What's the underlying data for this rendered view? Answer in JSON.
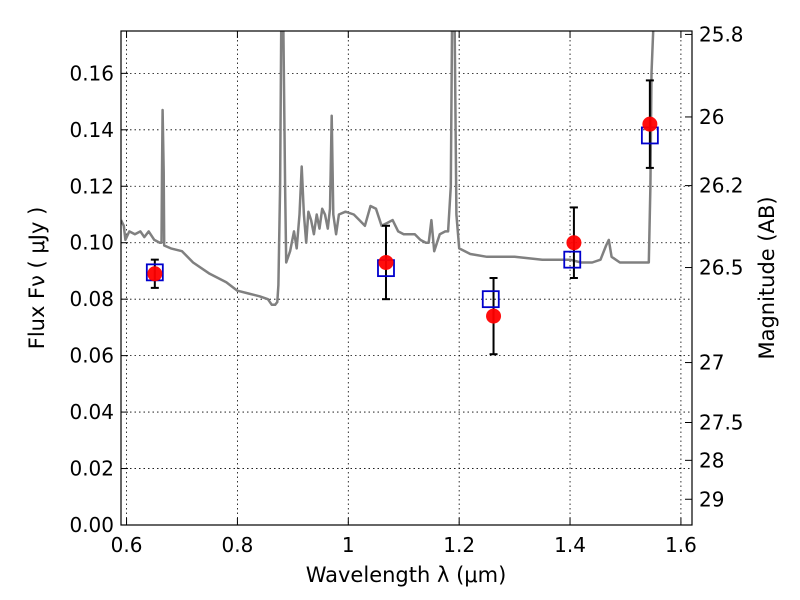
{
  "chart_data": {
    "type": "scatter",
    "xlabel": "Wavelength  λ (μm)",
    "ylabel": "Flux  Fν  ( μJy )",
    "y2label": "Magnitude (AB)",
    "xlim": [
      0.59,
      1.62
    ],
    "ylim": [
      0.0,
      0.175
    ],
    "grid": true,
    "x_ticks": [
      {
        "value": 0.6,
        "label": "0.6"
      },
      {
        "value": 0.8,
        "label": "0.8"
      },
      {
        "value": 1.0,
        "label": "1"
      },
      {
        "value": 1.2,
        "label": "1.2"
      },
      {
        "value": 1.4,
        "label": "1.4"
      },
      {
        "value": 1.6,
        "label": "1.6"
      }
    ],
    "y_ticks": [
      {
        "value": 0.0,
        "label": "0.00"
      },
      {
        "value": 0.02,
        "label": "0.02"
      },
      {
        "value": 0.04,
        "label": "0.04"
      },
      {
        "value": 0.06,
        "label": "0.06"
      },
      {
        "value": 0.08,
        "label": "0.08"
      },
      {
        "value": 0.1,
        "label": "0.10"
      },
      {
        "value": 0.12,
        "label": "0.12"
      },
      {
        "value": 0.14,
        "label": "0.14"
      },
      {
        "value": 0.16,
        "label": "0.16"
      }
    ],
    "y2_ticks": [
      {
        "mag": 25.8,
        "label": "25.8"
      },
      {
        "mag": 26.0,
        "label": "26"
      },
      {
        "mag": 26.2,
        "label": "26.2"
      },
      {
        "mag": 26.5,
        "label": "26.5"
      },
      {
        "mag": 27.0,
        "label": "27"
      },
      {
        "mag": 27.5,
        "label": "27.5"
      },
      {
        "mag": 28.0,
        "label": "28"
      },
      {
        "mag": 29.0,
        "label": "29"
      }
    ],
    "observed": {
      "marker": "circle",
      "color": "#ff0000",
      "points": [
        {
          "x": 0.651,
          "y": 0.089,
          "err": 0.005
        },
        {
          "x": 1.068,
          "y": 0.093,
          "err": 0.013
        },
        {
          "x": 1.262,
          "y": 0.074,
          "err": 0.0135
        },
        {
          "x": 1.407,
          "y": 0.1,
          "err": 0.0125
        },
        {
          "x": 1.544,
          "y": 0.142,
          "err": 0.0155
        }
      ]
    },
    "model_photometry": {
      "marker": "square",
      "color": "#0000cc",
      "points": [
        {
          "x": 0.651,
          "y": 0.0895
        },
        {
          "x": 1.068,
          "y": 0.091
        },
        {
          "x": 1.257,
          "y": 0.08
        },
        {
          "x": 1.404,
          "y": 0.094
        },
        {
          "x": 1.544,
          "y": 0.138
        }
      ]
    },
    "model_spectrum": {
      "color": "#808080",
      "points": [
        [
          0.59,
          0.108
        ],
        [
          0.595,
          0.106
        ],
        [
          0.598,
          0.101
        ],
        [
          0.605,
          0.104
        ],
        [
          0.615,
          0.103
        ],
        [
          0.625,
          0.104
        ],
        [
          0.632,
          0.102
        ],
        [
          0.64,
          0.104
        ],
        [
          0.65,
          0.101
        ],
        [
          0.66,
          0.1
        ],
        [
          0.663,
          0.1
        ],
        [
          0.664,
          0.125
        ],
        [
          0.665,
          0.147
        ],
        [
          0.667,
          0.125
        ],
        [
          0.668,
          0.099
        ],
        [
          0.68,
          0.098
        ],
        [
          0.7,
          0.097
        ],
        [
          0.72,
          0.093
        ],
        [
          0.75,
          0.089
        ],
        [
          0.78,
          0.086
        ],
        [
          0.8,
          0.083
        ],
        [
          0.82,
          0.082
        ],
        [
          0.84,
          0.081
        ],
        [
          0.855,
          0.08
        ],
        [
          0.862,
          0.078
        ],
        [
          0.868,
          0.078
        ],
        [
          0.872,
          0.079
        ],
        [
          0.874,
          0.085
        ],
        [
          0.877,
          0.12
        ],
        [
          0.879,
          0.175
        ],
        [
          0.883,
          0.175
        ],
        [
          0.886,
          0.12
        ],
        [
          0.888,
          0.093
        ],
        [
          0.895,
          0.097
        ],
        [
          0.902,
          0.104
        ],
        [
          0.907,
          0.098
        ],
        [
          0.912,
          0.11
        ],
        [
          0.916,
          0.127
        ],
        [
          0.92,
          0.11
        ],
        [
          0.924,
          0.1
        ],
        [
          0.928,
          0.111
        ],
        [
          0.933,
          0.108
        ],
        [
          0.938,
          0.103
        ],
        [
          0.943,
          0.11
        ],
        [
          0.948,
          0.105
        ],
        [
          0.953,
          0.112
        ],
        [
          0.958,
          0.11
        ],
        [
          0.963,
          0.105
        ],
        [
          0.967,
          0.112
        ],
        [
          0.97,
          0.145
        ],
        [
          0.973,
          0.11
        ],
        [
          0.978,
          0.103
        ],
        [
          0.983,
          0.11
        ],
        [
          0.995,
          0.111
        ],
        [
          1.01,
          0.11
        ],
        [
          1.02,
          0.108
        ],
        [
          1.03,
          0.106
        ],
        [
          1.04,
          0.113
        ],
        [
          1.05,
          0.112
        ],
        [
          1.06,
          0.106
        ],
        [
          1.07,
          0.107
        ],
        [
          1.08,
          0.108
        ],
        [
          1.09,
          0.104
        ],
        [
          1.1,
          0.103
        ],
        [
          1.12,
          0.103
        ],
        [
          1.13,
          0.101
        ],
        [
          1.14,
          0.1
        ],
        [
          1.145,
          0.1
        ],
        [
          1.15,
          0.108
        ],
        [
          1.155,
          0.097
        ],
        [
          1.165,
          0.103
        ],
        [
          1.175,
          0.104
        ],
        [
          1.18,
          0.104
        ],
        [
          1.185,
          0.12
        ],
        [
          1.187,
          0.175
        ],
        [
          1.192,
          0.175
        ],
        [
          1.195,
          0.11
        ],
        [
          1.2,
          0.098
        ],
        [
          1.22,
          0.096
        ],
        [
          1.25,
          0.095
        ],
        [
          1.3,
          0.095
        ],
        [
          1.35,
          0.094
        ],
        [
          1.38,
          0.094
        ],
        [
          1.4,
          0.094
        ],
        [
          1.42,
          0.093
        ],
        [
          1.44,
          0.093
        ],
        [
          1.455,
          0.094
        ],
        [
          1.465,
          0.099
        ],
        [
          1.47,
          0.101
        ],
        [
          1.475,
          0.095
        ],
        [
          1.49,
          0.093
        ],
        [
          1.52,
          0.093
        ],
        [
          1.535,
          0.093
        ],
        [
          1.542,
          0.093
        ],
        [
          1.545,
          0.12
        ],
        [
          1.547,
          0.16
        ],
        [
          1.55,
          0.175
        ]
      ]
    }
  }
}
